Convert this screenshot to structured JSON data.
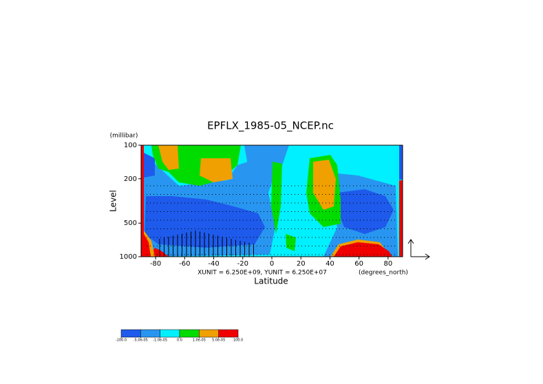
{
  "chart_data": {
    "type": "contour",
    "title": "EPFLX_1985-05_NCEP.nc",
    "y_unit": "(millibar)",
    "y_label": "Level",
    "x_label": "Latitude",
    "x_unit": "(degrees_north)",
    "annotation": "XUNIT = 6.250E+09, YUNIT = 6.250E+07",
    "xlim": [
      -90,
      90
    ],
    "xticks": [
      -80,
      -60,
      -40,
      -20,
      0,
      20,
      40,
      60,
      80
    ],
    "ylim": [
      1000,
      100
    ],
    "yticks": [
      100,
      200,
      500,
      1000
    ],
    "ylog": true,
    "colorbar": {
      "levels": [
        {
          "value": -100,
          "label": "-100.0"
        },
        {
          "value": -5e-05,
          "label": "-5.0e-05"
        },
        {
          "value": -1e-05,
          "label": "-1.0e-05"
        },
        {
          "value": 0,
          "label": "0.0"
        },
        {
          "value": 1e-05,
          "label": "1.0e-05"
        },
        {
          "value": 5e-05,
          "label": "5.0e-05"
        },
        {
          "value": 100,
          "label": "100.0"
        }
      ],
      "colors": [
        "#1e5aeb",
        "#2896f0",
        "#00f0ff",
        "#00dc00",
        "#f0a000",
        "#f00000"
      ]
    }
  }
}
